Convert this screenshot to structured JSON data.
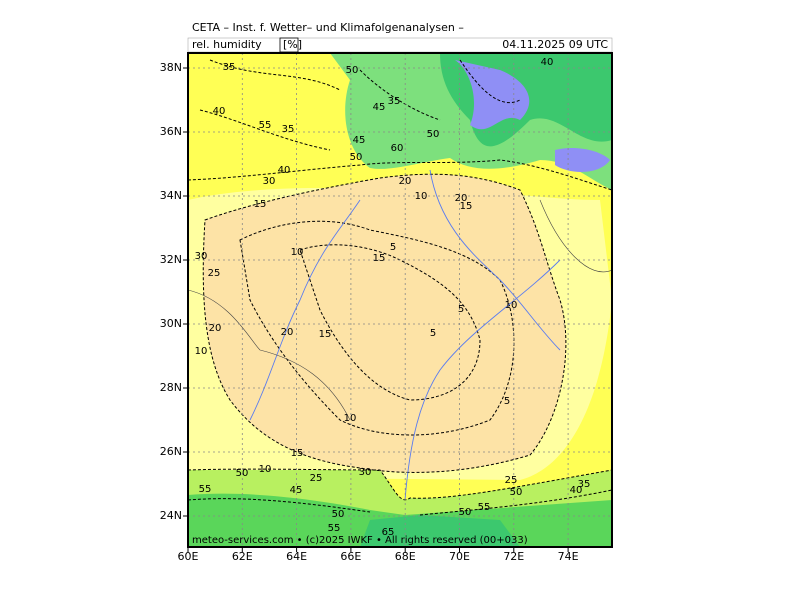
{
  "header": {
    "title": "CETA – Inst. f. Wetter– und Klimafolgenanalysen –",
    "variable": "rel. humidity",
    "unit": "[%]",
    "datetime": "04.11.2025 09 UTC"
  },
  "lat_ticks": [
    {
      "value": 38,
      "label": "38N"
    },
    {
      "value": 36,
      "label": "36N"
    },
    {
      "value": 34,
      "label": "34N"
    },
    {
      "value": 32,
      "label": "32N"
    },
    {
      "value": 30,
      "label": "30N"
    },
    {
      "value": 28,
      "label": "28N"
    },
    {
      "value": 26,
      "label": "26N"
    },
    {
      "value": 24,
      "label": "24N"
    }
  ],
  "lon_ticks": [
    {
      "value": 60,
      "label": "60E"
    },
    {
      "value": 62,
      "label": "62E"
    },
    {
      "value": 64,
      "label": "64E"
    },
    {
      "value": 66,
      "label": "66E"
    },
    {
      "value": 68,
      "label": "68E"
    },
    {
      "value": 70,
      "label": "70E"
    },
    {
      "value": 72,
      "label": "72E"
    },
    {
      "value": 74,
      "label": "74E"
    }
  ],
  "contour_labels": [
    35,
    40,
    35,
    55,
    40,
    30,
    15,
    30,
    25,
    10,
    20,
    20,
    15,
    10,
    10,
    15,
    10,
    50,
    55,
    45,
    25,
    30,
    50,
    55,
    65,
    5,
    15,
    10,
    20,
    15,
    5,
    5,
    10,
    5,
    25,
    50,
    55,
    50,
    35,
    40,
    40,
    50,
    45,
    35,
    60,
    50,
    50,
    45,
    20
  ],
  "footer": "meteo-services.com • (c)2025 IWKF • All rights reserved (00+033)"
}
